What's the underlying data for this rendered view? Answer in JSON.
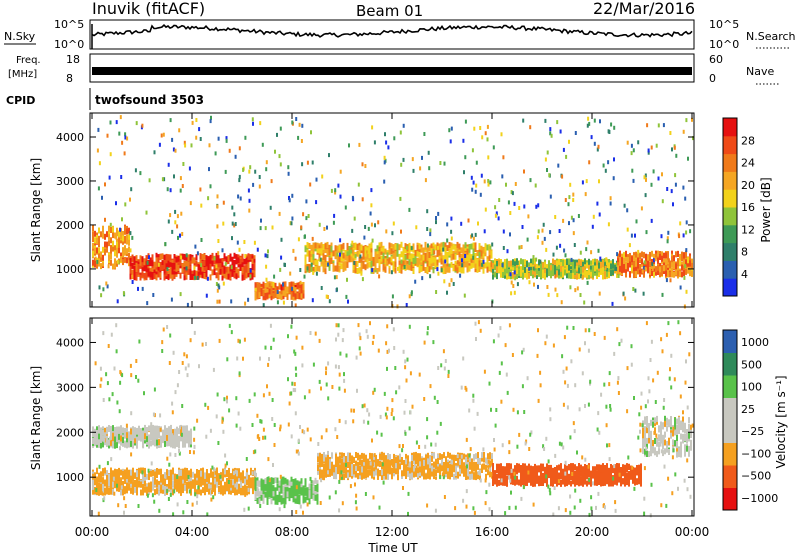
{
  "header": {
    "station": "Inuvik (fitACF)",
    "beam": "Beam 01",
    "date": "22/Mar/2016"
  },
  "noise_panel": {
    "left_label": "N.Sky",
    "right_label": "N.Search",
    "left_ticks": [
      "10^5",
      "10^0"
    ],
    "right_ticks": [
      "10^5",
      "10^0"
    ]
  },
  "freq_panel": {
    "left_label_1": "Freq.",
    "left_label_2": "[MHz]",
    "right_label": "Nave",
    "left_ticks": [
      "18",
      "8"
    ],
    "right_ticks": [
      "60",
      "0"
    ]
  },
  "cpid_panel": {
    "label": "CPID",
    "value": "twofsound 3503"
  },
  "colors": {
    "power_scale": [
      "#1a2ee8",
      "#2a5fb0",
      "#2f7f6a",
      "#3e9a56",
      "#8fc43a",
      "#f2d21b",
      "#f5a623",
      "#f07a1a",
      "#ef4a17",
      "#e61010"
    ],
    "velocity_scale": [
      "#e61010",
      "#f05a1a",
      "#f5a020",
      "#c8c8c0",
      "#c8c8c0",
      "#59c24a",
      "#2f8a5a",
      "#2c5fb0"
    ]
  },
  "chart_data": [
    {
      "type": "heatmap",
      "title": "",
      "xlabel": "",
      "ylabel": "Slant Range [km]",
      "xlim": [
        "00:00",
        "00:00"
      ],
      "ylim": [
        180,
        4500
      ],
      "yticks": [
        "1000",
        "2000",
        "3000",
        "4000"
      ],
      "colorbar": {
        "label": "Power [dB]",
        "ticks": [
          "4",
          "8",
          "12",
          "16",
          "20",
          "24",
          "28"
        ]
      },
      "bands": [
        {
          "from_hour": 0.0,
          "to_hour": 1.5,
          "range_center_km": 1500,
          "range_width_km": 900,
          "value_db": 22
        },
        {
          "from_hour": 1.5,
          "to_hour": 6.5,
          "range_center_km": 1050,
          "range_width_km": 500,
          "value_db": 28
        },
        {
          "from_hour": 6.5,
          "to_hour": 8.5,
          "range_center_km": 500,
          "range_width_km": 300,
          "value_db": 24
        },
        {
          "from_hour": 8.5,
          "to_hour": 16.0,
          "range_center_km": 1250,
          "range_width_km": 600,
          "value_db": 20
        },
        {
          "from_hour": 16.0,
          "to_hour": 21.0,
          "range_center_km": 1000,
          "range_width_km": 350,
          "value_db": 16
        },
        {
          "from_hour": 21.0,
          "to_hour": 24.0,
          "range_center_km": 1100,
          "range_width_km": 500,
          "value_db": 24
        }
      ]
    },
    {
      "type": "heatmap",
      "title": "",
      "xlabel": "Time UT",
      "ylabel": "Slant Range [km]",
      "xticks": [
        "00:00",
        "04:00",
        "08:00",
        "12:00",
        "16:00",
        "20:00",
        "00:00"
      ],
      "ylim": [
        180,
        4500
      ],
      "yticks": [
        "1000",
        "2000",
        "3000",
        "4000"
      ],
      "colorbar": {
        "label": "Velocity [m s⁻¹]",
        "ticks": [
          "1000",
          "500",
          "100",
          "25",
          "−25",
          "−100",
          "−500",
          "−1000"
        ]
      },
      "bands": [
        {
          "from_hour": 0.0,
          "to_hour": 6.5,
          "range_center_km": 900,
          "range_width_km": 500,
          "value_ms": -100
        },
        {
          "from_hour": 0.0,
          "to_hour": 4.0,
          "range_center_km": 1900,
          "range_width_km": 400,
          "value_ms": 0
        },
        {
          "from_hour": 6.5,
          "to_hour": 9.0,
          "range_center_km": 700,
          "range_width_km": 500,
          "value_ms": 100
        },
        {
          "from_hour": 9.0,
          "to_hour": 16.0,
          "range_center_km": 1250,
          "range_width_km": 500,
          "value_ms": -100
        },
        {
          "from_hour": 16.0,
          "to_hour": 22.0,
          "range_center_km": 1050,
          "range_width_km": 400,
          "value_ms": -500
        },
        {
          "from_hour": 22.0,
          "to_hour": 24.0,
          "range_center_km": 1900,
          "range_width_km": 800,
          "value_ms": 0
        }
      ]
    }
  ]
}
